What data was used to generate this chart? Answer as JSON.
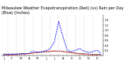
{
  "title": "Milwaukee Weather Evapotranspiration (Red) (vs) Rain per Day (Blue) (Inches)",
  "x_labels": [
    "J",
    "",
    "F",
    "",
    "M",
    "",
    "A",
    "",
    "M",
    "",
    "J",
    "",
    "J",
    "",
    "A",
    "",
    "S",
    "",
    "O",
    "",
    "N",
    "",
    "D",
    ""
  ],
  "x": [
    0,
    1,
    2,
    3,
    4,
    5,
    6,
    7,
    8,
    9,
    10,
    11,
    12,
    13,
    14,
    15,
    16,
    17,
    18,
    19,
    20,
    21,
    22,
    23
  ],
  "et_red": [
    0.02,
    0.02,
    0.03,
    0.04,
    0.05,
    0.06,
    0.08,
    0.1,
    0.13,
    0.15,
    0.17,
    0.18,
    0.19,
    0.18,
    0.16,
    0.14,
    0.11,
    0.09,
    0.06,
    0.05,
    0.04,
    0.03,
    0.02,
    0.02
  ],
  "rain_blue": [
    0.04,
    0.05,
    0.06,
    0.07,
    0.07,
    0.08,
    0.09,
    0.18,
    0.14,
    0.16,
    0.2,
    0.28,
    0.55,
    1.35,
    0.75,
    0.22,
    0.16,
    0.22,
    0.28,
    0.18,
    0.13,
    0.16,
    0.22,
    0.09
  ],
  "black_line": [
    0.07,
    0.06,
    0.07,
    0.06,
    0.08,
    0.09,
    0.09,
    0.11,
    0.13,
    0.14,
    0.15,
    0.17,
    0.18,
    0.19,
    0.17,
    0.15,
    0.13,
    0.11,
    0.09,
    0.08,
    0.07,
    0.06,
    0.06,
    0.06
  ],
  "vlines_x": [
    1,
    3,
    5,
    7,
    9,
    11,
    13,
    15,
    17,
    19,
    21
  ],
  "ylim": [
    0,
    1.6
  ],
  "yticks": [
    0.2,
    0.4,
    0.6,
    0.8,
    1.0,
    1.2,
    1.4
  ],
  "background": "#ffffff",
  "title_fontsize": 3.5,
  "tick_fontsize": 2.5
}
